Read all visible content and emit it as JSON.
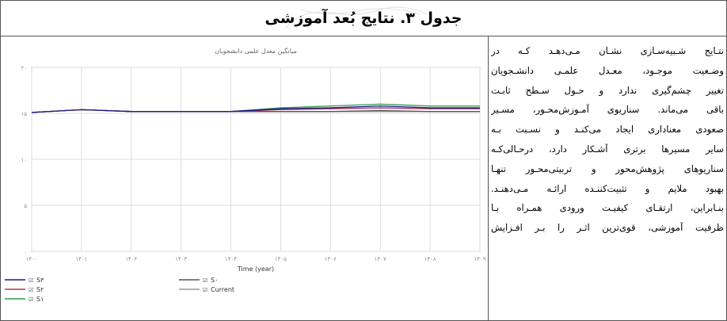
{
  "table_title": "جدول ۳. نتایج بُعد آموزشی",
  "paragraph_lines": [
    "نتـایج شـبیه‌سـازی نشـان مـی‌دهـد کـه در",
    "وضـعیت موجـود، معـدل علمـی دانشـجویان",
    "تغییر چشم‌گیری ندارد و حـول سـطح ثابـت",
    "باقی می‌ماند. سناریوی آمـوزش‌محـور، مسـیر",
    "صعودی معناداری ایجاد می‌کنـد و نسـبت بـه",
    "سایر مسیرها برتری آشـکار دارد، درحـالی‌کـه",
    "سناریوهای پژوهش‌محور و تربیتی‌محـور تنهـا",
    "بهبود ملایم و تثبیت‌کننـده ارائـه مـی‌دهنـد.",
    "بنـابراین، ارتقـای کیفیـت ورودی همـراه بـا",
    "ظرفیت آموزشی، قوی‌ترین اثـر را بـر افـزایش"
  ],
  "chart_data": {
    "type": "line",
    "title": "میانگین معدل علمی دانشجویان",
    "xlabel": "Time (year)",
    "ylabel": "",
    "x": [
      "۱۴۰۰",
      "۱۴۰۱",
      "۱۴۰۲",
      "۱۴۰۳",
      "۱۴۰۴",
      "۱۴۰۵",
      "۱۴۰۶",
      "۱۴۰۷",
      "۱۴۰۸",
      "۱۴۰۹"
    ],
    "y_ticks": [
      "۲۰",
      "۱۵",
      "۱۰",
      "۵",
      "۰"
    ],
    "ylim": [
      0,
      20
    ],
    "grid": true,
    "legend_placement": "bottom",
    "series": [
      {
        "name": "S۳",
        "color": "#1a1a8c",
        "values": [
          15.1,
          15.4,
          15.2,
          15.2,
          15.2,
          15.5,
          15.6,
          15.8,
          15.6,
          15.6
        ]
      },
      {
        "name": "S۲",
        "color": "#b0305a",
        "values": [
          15.1,
          15.4,
          15.2,
          15.2,
          15.2,
          15.4,
          15.5,
          15.6,
          15.5,
          15.5
        ]
      },
      {
        "name": "S۱",
        "color": "#2e9e4a",
        "values": [
          15.1,
          15.4,
          15.2,
          15.2,
          15.2,
          15.6,
          15.8,
          16.0,
          15.8,
          15.8
        ]
      },
      {
        "name": "S۰",
        "color": "#555555",
        "values": [
          15.1,
          15.4,
          15.2,
          15.2,
          15.2,
          15.2,
          15.2,
          15.3,
          15.2,
          15.2
        ]
      },
      {
        "name": "Current",
        "color": "#999999",
        "values": [
          15.1,
          15.4,
          15.2,
          15.2,
          15.2,
          15.2,
          15.2,
          15.2,
          15.2,
          15.2
        ]
      }
    ]
  }
}
